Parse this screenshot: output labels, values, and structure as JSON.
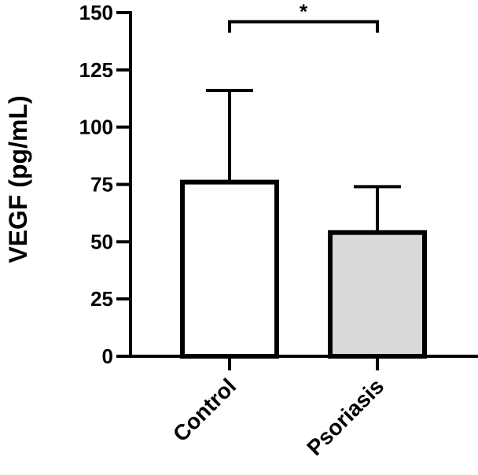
{
  "chart_data": {
    "type": "bar",
    "title": "",
    "xlabel": "",
    "ylabel": "VEGF (pg/mL)",
    "ylim": [
      0,
      150
    ],
    "yticks": [
      0,
      25,
      50,
      75,
      100,
      125,
      150
    ],
    "grid": false,
    "categories": [
      "Control",
      "Psoriasis"
    ],
    "values": [
      76,
      54
    ],
    "error_upper": [
      40,
      20
    ],
    "bar_fill_colors": [
      "#ffffff",
      "#d9d9d9"
    ],
    "bar_stroke_color": "#000000",
    "significance": {
      "between": [
        "Control",
        "Psoriasis"
      ],
      "label": "*",
      "level": 146
    }
  }
}
